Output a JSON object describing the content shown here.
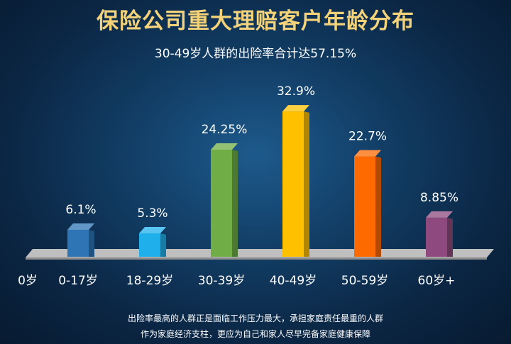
{
  "chart_data": {
    "type": "bar",
    "title": "保险公司重大理赔客户年龄分布",
    "subtitle": "30-49岁人群的出险率合计达57.15%",
    "axis_origin_label": "0岁",
    "categories": [
      "0-17岁",
      "18-29岁",
      "30-39岁",
      "40-49岁",
      "50-59岁",
      "60岁+"
    ],
    "values": [
      6.1,
      5.3,
      24.25,
      32.9,
      22.7,
      8.85
    ],
    "value_labels": [
      "6.1%",
      "5.3%",
      "24.25%",
      "32.9%",
      "22.7%",
      "8.85%"
    ],
    "unit": "%",
    "ylim": [
      0,
      35
    ],
    "colors": [
      "#2e75b6",
      "#1fb0ec",
      "#70ad47",
      "#ffc000",
      "#ff6a00",
      "#8e4a7e"
    ],
    "grid": false
  },
  "footnote": {
    "line1": "出险率最高的人群正是面临工作压力最大，承担家庭责任最重的人群",
    "line2": "作为家庭经济支柱，更应为自己和家人尽早完备家庭健康保障"
  }
}
